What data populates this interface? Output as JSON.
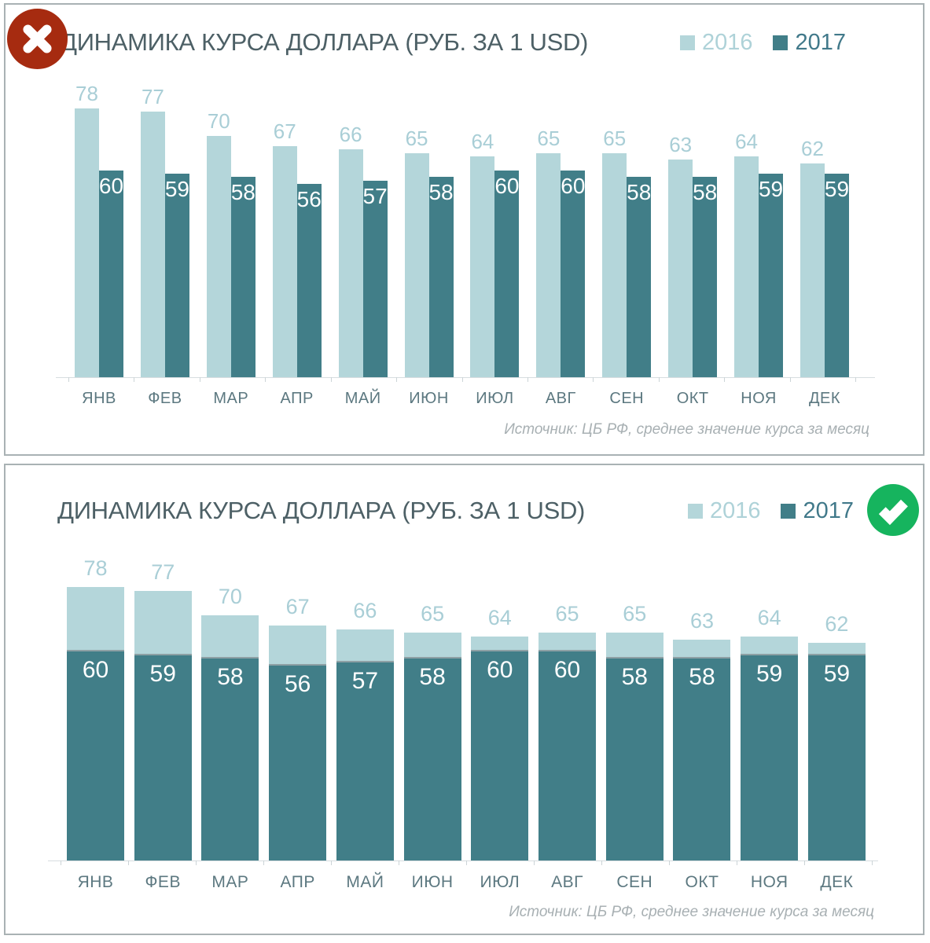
{
  "chart_data": [
    {
      "type": "bar",
      "variant": "grouped",
      "title": "ДИНАМИКА КУРСА ДОЛЛАРА (РУБ. ЗА 1 USD)",
      "status_icon": "cross-circle-red",
      "status_color": "#a62b10",
      "categories": [
        "ЯНВ",
        "ФЕВ",
        "МАР",
        "АПР",
        "МАЙ",
        "ИЮН",
        "ИЮЛ",
        "АВГ",
        "СЕН",
        "ОКТ",
        "НОЯ",
        "ДЕК"
      ],
      "series": [
        {
          "name": "2016",
          "color": "#b4d6da",
          "values": [
            78,
            77,
            70,
            67,
            66,
            65,
            64,
            65,
            65,
            63,
            64,
            62
          ]
        },
        {
          "name": "2017",
          "color": "#417e88",
          "values": [
            60,
            59,
            58,
            56,
            57,
            58,
            60,
            60,
            58,
            58,
            59,
            59
          ]
        }
      ],
      "ylim": [
        0,
        80
      ],
      "grid": false,
      "legend_position": "top-right",
      "source_note": "Источник: ЦБ РФ, среднее значение курса за месяц"
    },
    {
      "type": "bar",
      "variant": "overlay",
      "title": "ДИНАМИКА КУРСА ДОЛЛАРА (РУБ. ЗА 1 USD)",
      "status_icon": "check-circle-green",
      "status_color": "#16b45e",
      "categories": [
        "ЯНВ",
        "ФЕВ",
        "МАР",
        "АПР",
        "МАЙ",
        "ИЮН",
        "ИЮЛ",
        "АВГ",
        "СЕН",
        "ОКТ",
        "НОЯ",
        "ДЕК"
      ],
      "series": [
        {
          "name": "2016",
          "color": "#b4d6da",
          "values": [
            78,
            77,
            70,
            67,
            66,
            65,
            64,
            65,
            65,
            63,
            64,
            62
          ]
        },
        {
          "name": "2017",
          "color": "#417e88",
          "values": [
            60,
            59,
            58,
            56,
            57,
            58,
            60,
            60,
            58,
            58,
            59,
            59
          ]
        }
      ],
      "ylim": [
        0,
        80
      ],
      "grid": false,
      "legend_position": "top-right",
      "source_note": "Источник: ЦБ РФ, среднее значение курса за месяц"
    }
  ]
}
